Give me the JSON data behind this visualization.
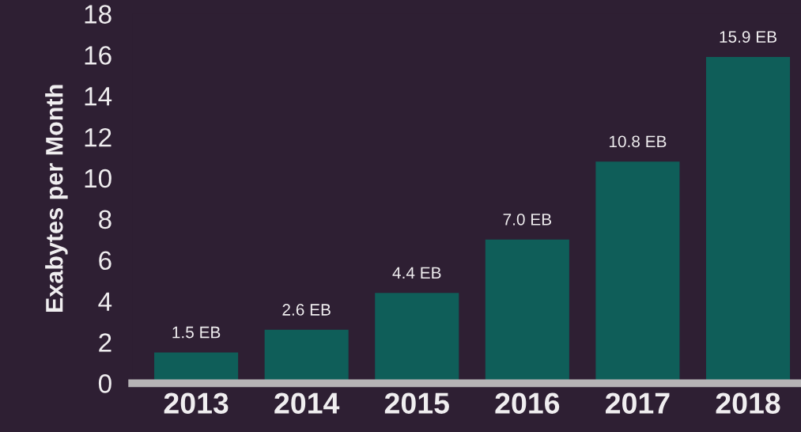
{
  "chart_data": {
    "type": "bar",
    "ylabel": "Exabytes per Month",
    "categories": [
      "2013",
      "2014",
      "2015",
      "2016",
      "2017",
      "2018"
    ],
    "values": [
      1.5,
      2.6,
      4.4,
      7.0,
      10.8,
      15.9
    ],
    "value_labels": [
      "1.5 EB",
      "2.6 EB",
      "4.4 EB",
      "7.0 EB",
      "10.8 EB",
      "15.9 EB"
    ],
    "color": "#0f5e59",
    "ylim": [
      0,
      18
    ],
    "yticks": [
      0,
      2,
      4,
      6,
      8,
      10,
      12,
      14,
      16,
      18
    ],
    "grid": false,
    "legend": false
  }
}
